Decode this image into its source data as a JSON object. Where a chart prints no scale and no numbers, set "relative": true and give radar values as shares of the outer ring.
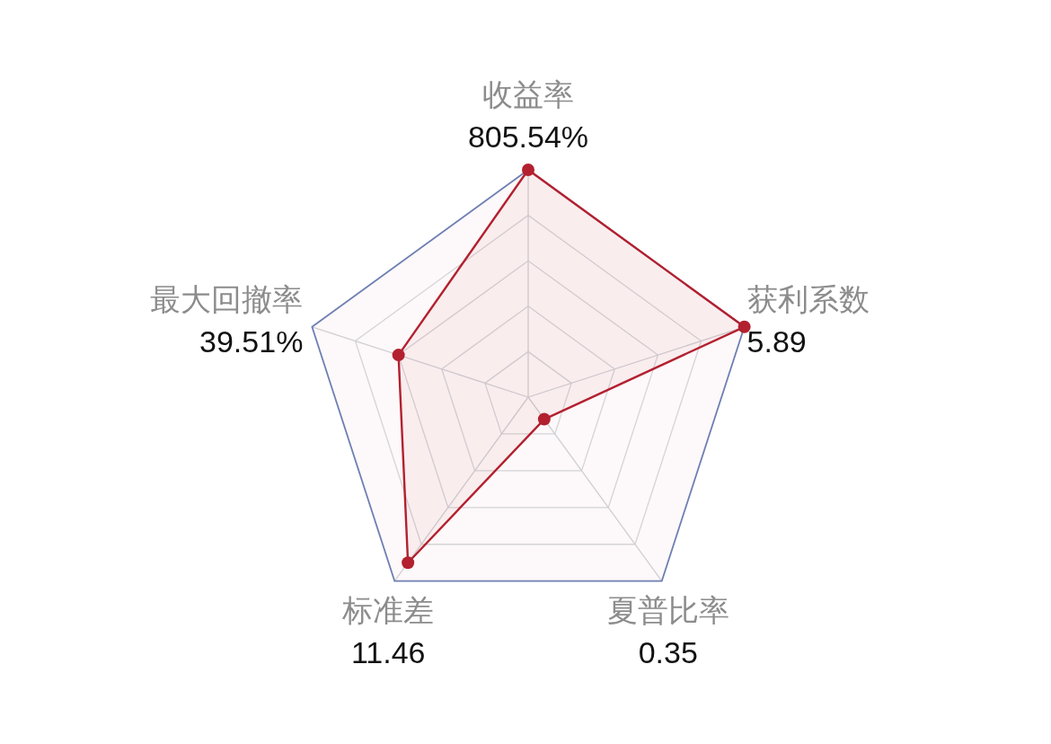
{
  "chart_data": {
    "type": "radar",
    "relative": true,
    "categories": [
      "收益率\n805.54%",
      "获利系数\n5.89",
      "夏普比率\n0.35",
      "标准差\n11.46",
      "最大回撤率\n39.51%"
    ],
    "series": [
      {
        "color": "#b3202f",
        "values": [
          1.0,
          1.0,
          0.12,
          0.9,
          0.6
        ]
      }
    ],
    "marker": "circle",
    "grid": true
  }
}
